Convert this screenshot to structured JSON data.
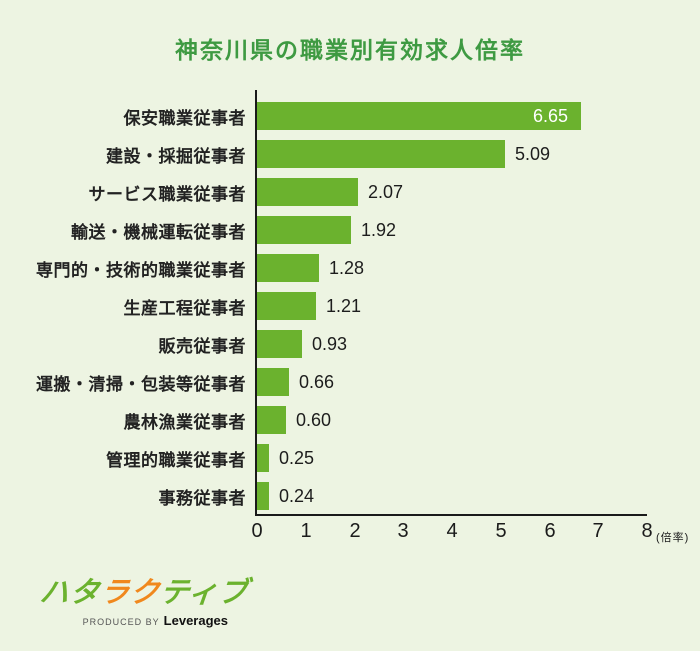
{
  "page": {
    "background": "#edf4e2"
  },
  "chart_data": {
    "type": "bar",
    "orientation": "horizontal",
    "title": "神奈川県の職業別有効求人倍率",
    "title_color": "#3e9a42",
    "categories": [
      "保安職業従事者",
      "建設・採掘従事者",
      "サービス職業従事者",
      "輸送・機械運転従事者",
      "専門的・技術的職業従事者",
      "生産工程従事者",
      "販売従事者",
      "運搬・清掃・包装等従事者",
      "農林漁業従事者",
      "管理的職業従事者",
      "事務従事者"
    ],
    "values": [
      6.65,
      5.09,
      2.07,
      1.92,
      1.28,
      1.21,
      0.93,
      0.66,
      0.6,
      0.25,
      0.24
    ],
    "value_labels": [
      "6.65",
      "5.09",
      "2.07",
      "1.92",
      "1.28",
      "1.21",
      "0.93",
      "0.66",
      "0.60",
      "0.25",
      "0.24"
    ],
    "xlim": [
      0,
      8
    ],
    "xticks": [
      "0",
      "1",
      "2",
      "3",
      "4",
      "5",
      "6",
      "7",
      "8"
    ],
    "x_unit": "(倍率)",
    "bar_color": "#6bb22e",
    "grid": false,
    "legend": false,
    "value_label_inside_first": true,
    "axis_color": "#1a1a1a"
  },
  "logo": {
    "wordmark": [
      {
        "char": "ハ",
        "color": "#6bb22e"
      },
      {
        "char": "タ",
        "color": "#6bb22e"
      },
      {
        "char": "ラ",
        "color": "#f0881d"
      },
      {
        "char": "ク",
        "color": "#f0881d"
      },
      {
        "char": "テ",
        "color": "#6bb22e"
      },
      {
        "char": "ィ",
        "color": "#6bb22e"
      },
      {
        "char": "ブ",
        "color": "#6bb22e"
      }
    ],
    "produced_by": "PRODUCED BY",
    "brand": "Leverages"
  }
}
